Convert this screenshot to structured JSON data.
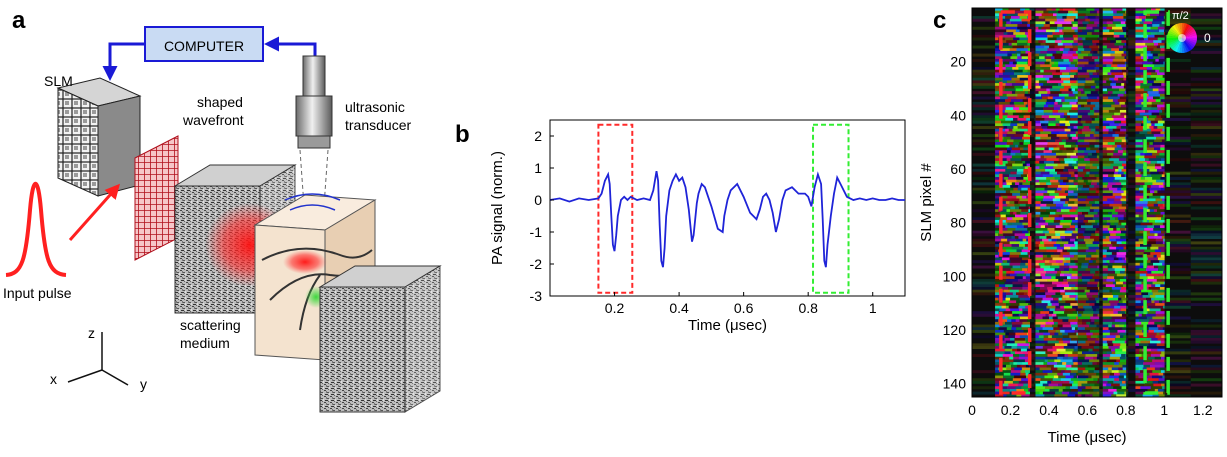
{
  "figure": {
    "panels": {
      "a": {
        "letter": "a",
        "labels": {
          "computer": "COMPUTER",
          "slm": "SLM",
          "shaped": "shaped",
          "wavefront": "wavefront",
          "ultrasonic": "ultrasonic",
          "transducer": "transducer",
          "input_pulse": "Input pulse",
          "scattering": "scattering",
          "medium": "medium",
          "axis_x": "x",
          "axis_y": "y",
          "axis_z": "z"
        },
        "colors": {
          "arrow_blue": "#1a1ad6",
          "computer_box": "#c9dbf3",
          "pulse_red": "#ff2020",
          "wavefront_red": "#c81e2b",
          "medium_beige": "#f4e3cf",
          "focus_green": "#3dd83d"
        }
      },
      "b": {
        "letter": "b"
      },
      "c": {
        "letter": "c",
        "colorwheel_label": "π/2",
        "colorwheel_zero": "0"
      }
    }
  },
  "chart_data": [
    {
      "type": "line",
      "panel": "b",
      "title": "",
      "xlabel": "Time (μsec)",
      "ylabel": "PA signal (norm.)",
      "xlim": [
        0,
        1.1
      ],
      "ylim": [
        -3,
        2.5
      ],
      "xticks": [
        0.2,
        0.4,
        0.6,
        0.8,
        1
      ],
      "xtick_labels": [
        "0.2",
        "0.4",
        "0.6",
        "0.8",
        "1"
      ],
      "yticks": [
        2,
        1,
        0,
        -1,
        -2,
        -3
      ],
      "ytick_labels": [
        "2",
        "1",
        "0",
        "-1",
        "-2",
        "-3"
      ],
      "series": [
        {
          "color": "#1f24d8",
          "x": [
            0.0,
            0.03,
            0.06,
            0.09,
            0.12,
            0.15,
            0.16,
            0.17,
            0.18,
            0.185,
            0.19,
            0.195,
            0.2,
            0.205,
            0.21,
            0.22,
            0.23,
            0.24,
            0.25,
            0.27,
            0.29,
            0.31,
            0.32,
            0.33,
            0.335,
            0.34,
            0.345,
            0.35,
            0.355,
            0.36,
            0.37,
            0.38,
            0.39,
            0.4,
            0.41,
            0.42,
            0.43,
            0.44,
            0.445,
            0.45,
            0.455,
            0.46,
            0.47,
            0.48,
            0.5,
            0.52,
            0.535,
            0.54,
            0.55,
            0.56,
            0.58,
            0.6,
            0.62,
            0.64,
            0.65,
            0.66,
            0.67,
            0.68,
            0.69,
            0.7,
            0.71,
            0.72,
            0.73,
            0.75,
            0.77,
            0.79,
            0.8,
            0.81,
            0.82,
            0.83,
            0.84,
            0.845,
            0.85,
            0.855,
            0.86,
            0.87,
            0.88,
            0.89,
            0.9,
            0.92,
            0.94,
            0.96,
            0.98,
            1.0,
            1.02,
            1.04,
            1.06,
            1.08,
            1.1
          ],
          "y": [
            0.0,
            0.05,
            -0.05,
            0.05,
            0.0,
            0.05,
            0.2,
            0.6,
            0.8,
            0.5,
            -0.5,
            -1.4,
            -1.6,
            -1.1,
            -0.5,
            0.0,
            0.1,
            0.0,
            0.1,
            0.0,
            0.05,
            0.0,
            0.3,
            0.9,
            0.6,
            -0.8,
            -1.9,
            -2.1,
            -1.5,
            -0.5,
            0.3,
            0.6,
            0.8,
            0.6,
            0.7,
            0.4,
            -0.3,
            -1.3,
            -1.1,
            -0.6,
            -0.1,
            0.2,
            0.5,
            0.4,
            -0.2,
            -0.9,
            -1.0,
            -0.5,
            0.0,
            0.3,
            0.5,
            0.1,
            -0.4,
            -0.6,
            -0.3,
            0.1,
            0.2,
            0.0,
            -0.4,
            -1.0,
            -0.6,
            0.0,
            0.3,
            0.4,
            0.2,
            0.2,
            0.1,
            -0.2,
            0.4,
            0.8,
            0.5,
            -0.6,
            -1.9,
            -2.1,
            -1.4,
            -0.5,
            0.2,
            0.7,
            0.5,
            0.1,
            0.0,
            0.05,
            0.0,
            0.05,
            0.0,
            0.0,
            0.05,
            0.0,
            0.0
          ]
        }
      ],
      "highlight_boxes": [
        {
          "x0": 0.15,
          "x1": 0.255,
          "y0": -2.9,
          "y1": 2.35,
          "color": "#ff2a2a"
        },
        {
          "x0": 0.815,
          "x1": 0.925,
          "y0": -2.9,
          "y1": 2.35,
          "color": "#33ee33"
        }
      ]
    },
    {
      "type": "heatmap",
      "panel": "c",
      "title": "",
      "xlabel": "Time (μsec)",
      "ylabel": "SLM pixel #",
      "xlim": [
        0,
        1.3
      ],
      "ylim": [
        145,
        0
      ],
      "xticks": [
        0,
        0.2,
        0.4,
        0.6,
        0.8,
        1,
        1.2
      ],
      "xtick_labels": [
        "0",
        "0.2",
        "0.4",
        "0.6",
        "0.8",
        "1",
        "1.2"
      ],
      "yticks": [
        20,
        40,
        60,
        80,
        100,
        120,
        140
      ],
      "ytick_labels": [
        "20",
        "40",
        "60",
        "80",
        "100",
        "120",
        "140"
      ],
      "bands": [
        {
          "x0": 0.12,
          "x1": 0.3,
          "intensity": 0.85
        },
        {
          "x0": 0.33,
          "x1": 0.55,
          "intensity": 1.0
        },
        {
          "x0": 0.55,
          "x1": 0.66,
          "intensity": 0.5
        },
        {
          "x0": 0.68,
          "x1": 0.8,
          "intensity": 0.95
        },
        {
          "x0": 0.85,
          "x1": 1.0,
          "intensity": 0.9
        }
      ],
      "highlight_boxes": [
        {
          "x0": 0.15,
          "x1": 0.3,
          "color": "#ff2a2a"
        },
        {
          "x0": 0.9,
          "x1": 1.02,
          "color": "#33ee33"
        }
      ]
    }
  ]
}
